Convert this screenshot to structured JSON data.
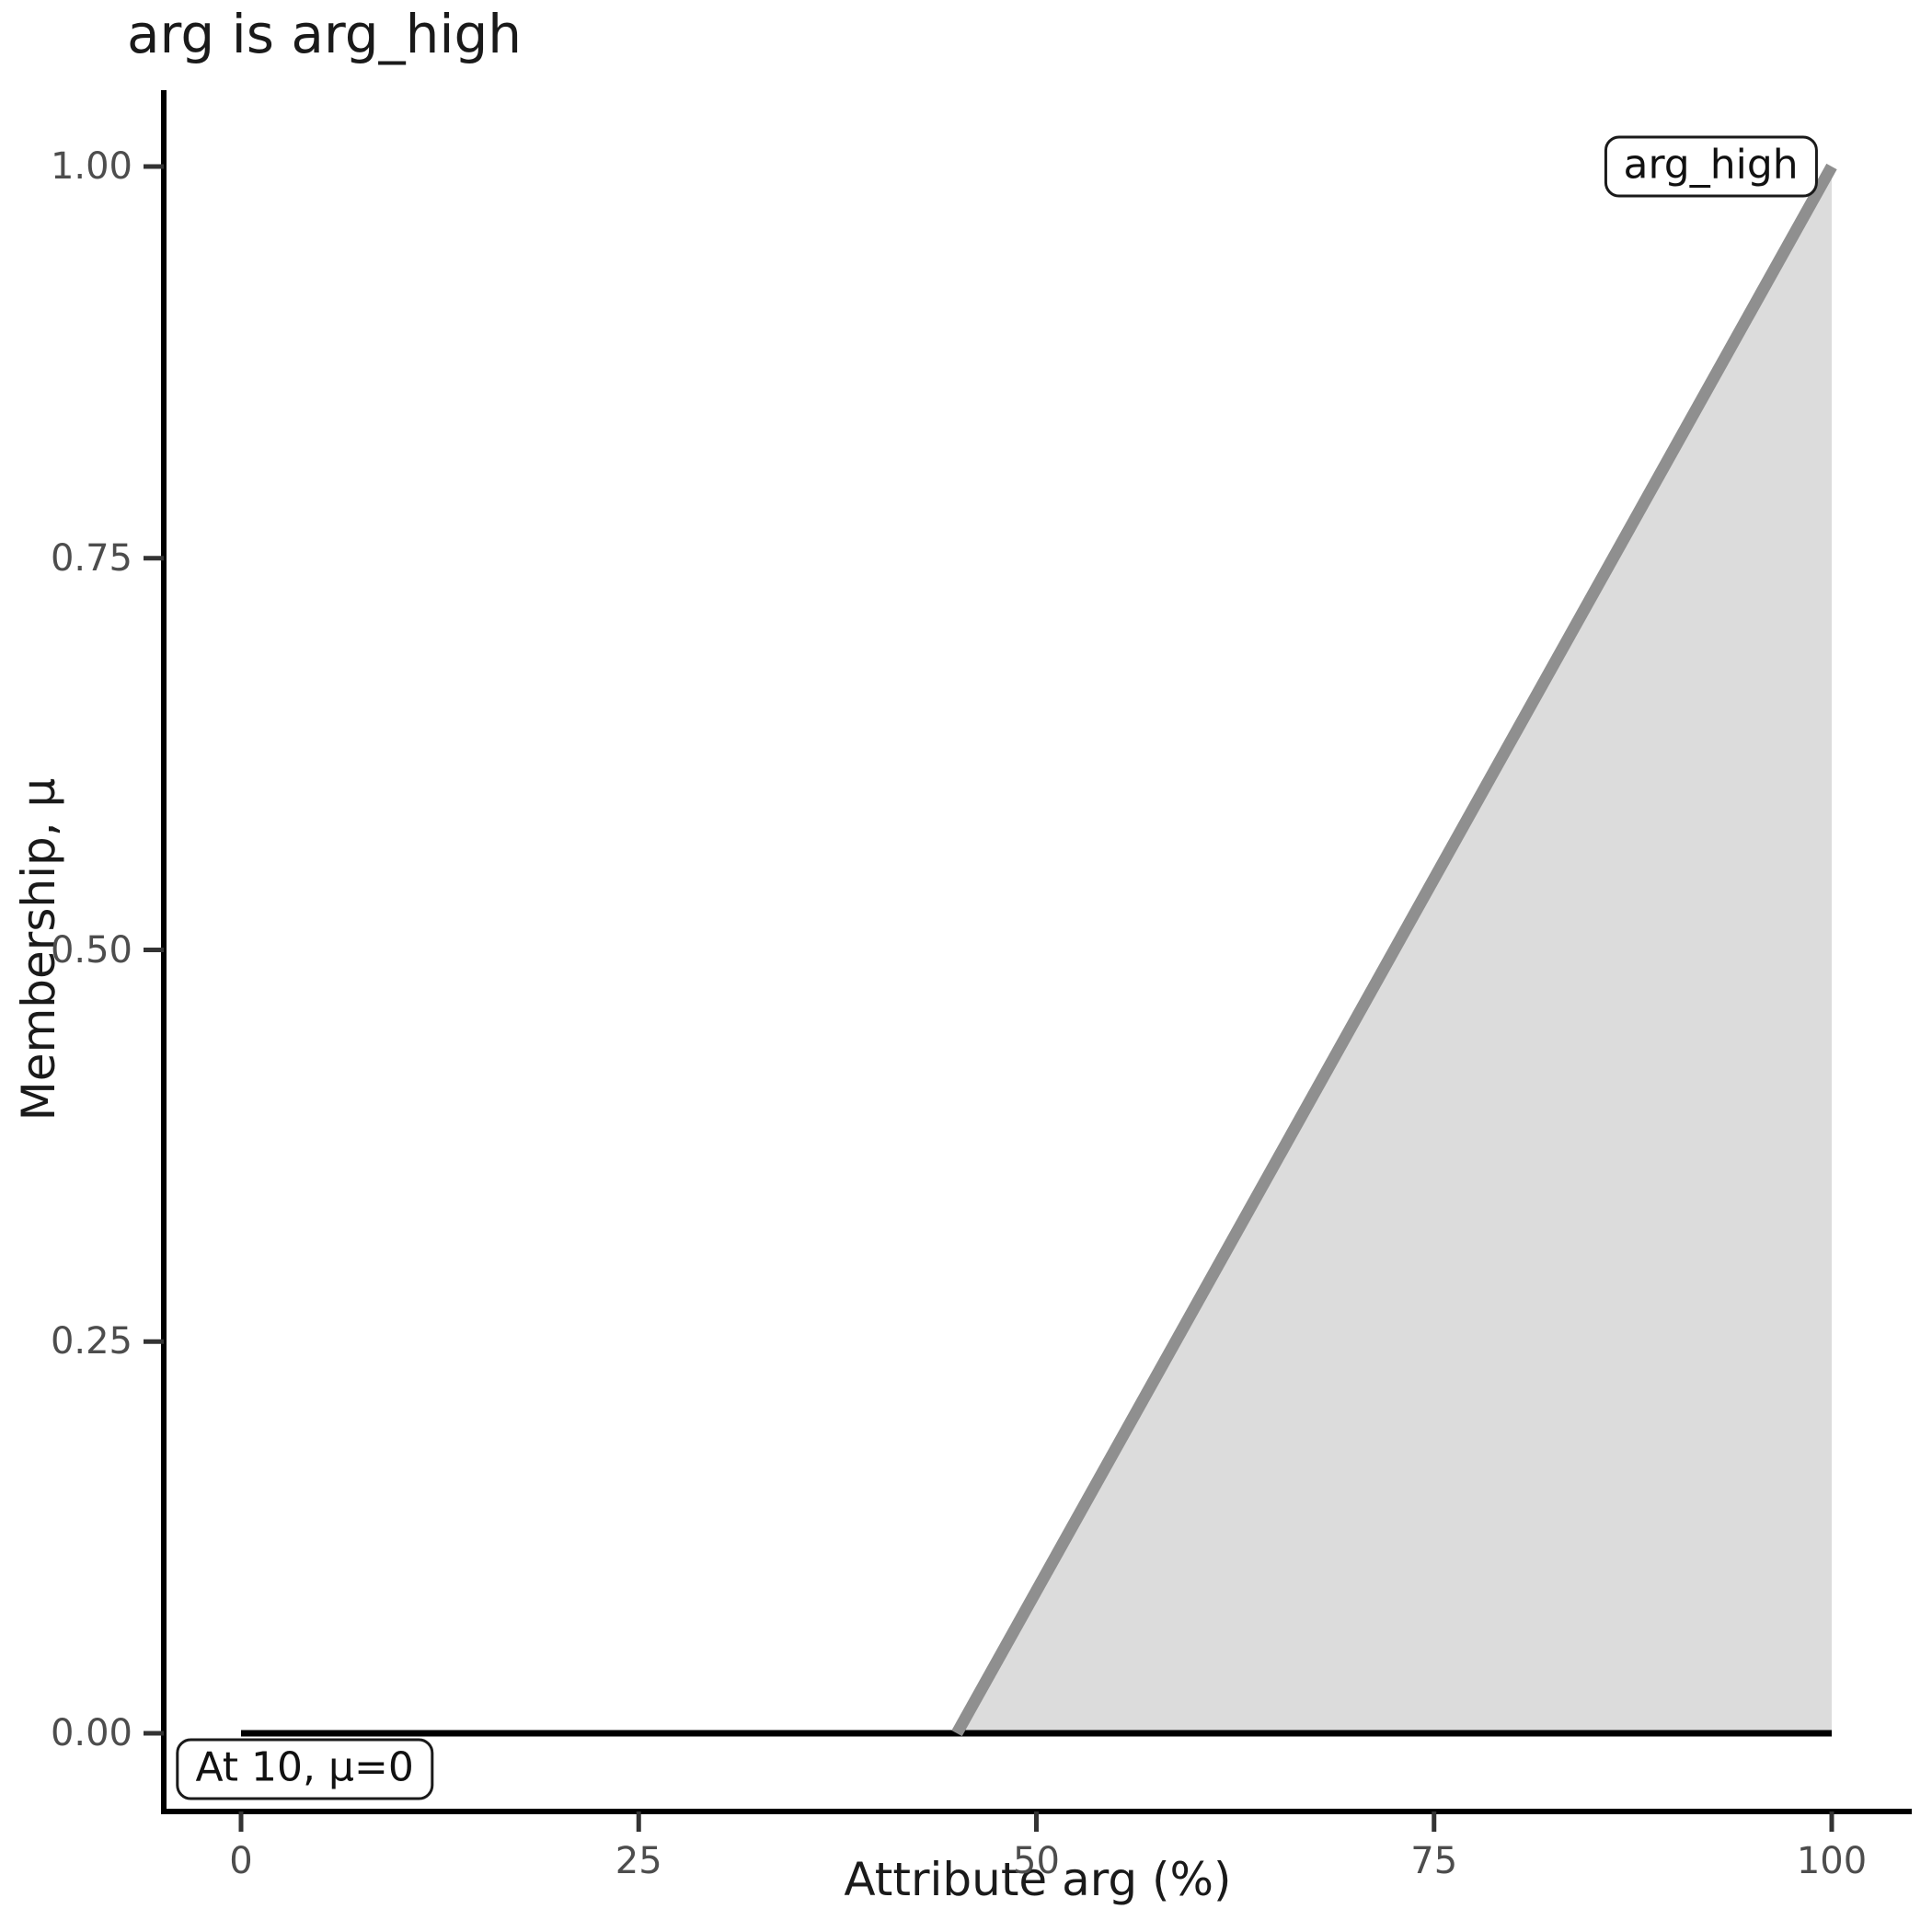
{
  "chart_data": {
    "type": "area",
    "title": "arg is arg_high",
    "xlabel": "Attribute arg (%)",
    "ylabel": "Membership, μ",
    "xlim": [
      0,
      100
    ],
    "ylim": [
      0,
      1
    ],
    "grid": false,
    "legend": "none",
    "x_ticks": [
      {
        "value": 0,
        "label": "0"
      },
      {
        "value": 25,
        "label": "25"
      },
      {
        "value": 50,
        "label": "50"
      },
      {
        "value": 75,
        "label": "75"
      },
      {
        "value": 100,
        "label": "100"
      }
    ],
    "y_ticks": [
      {
        "value": 0,
        "label": "0.00"
      },
      {
        "value": 0.25,
        "label": "0.25"
      },
      {
        "value": 0.5,
        "label": "0.50"
      },
      {
        "value": 0.75,
        "label": "0.75"
      },
      {
        "value": 1,
        "label": "1.00"
      }
    ],
    "series": [
      {
        "name": "arg_high-membership-ramp",
        "type": "area",
        "points": [
          [
            45,
            0
          ],
          [
            100,
            1
          ]
        ],
        "baseline": 0,
        "line_color": "#8f8f8f",
        "line_width": 13,
        "fill_color": "#dcdcdc"
      },
      {
        "name": "membership-zero-line",
        "type": "line",
        "points": [
          [
            0,
            0
          ],
          [
            100,
            0
          ]
        ],
        "line_color": "#000000",
        "line_width": 7
      }
    ],
    "annotations": [
      {
        "name": "set-label",
        "text": "arg_high",
        "x": 92.4,
        "y": 1.0
      },
      {
        "name": "readout-label",
        "text": "At 10, μ=0",
        "x": 4.0,
        "y": -0.023
      }
    ],
    "colors": {
      "axis_line": "#000000",
      "tick_mark": "#333333",
      "tick_label": "#4d4d4d",
      "text": "#1a1a1a",
      "background": "#ffffff"
    }
  }
}
